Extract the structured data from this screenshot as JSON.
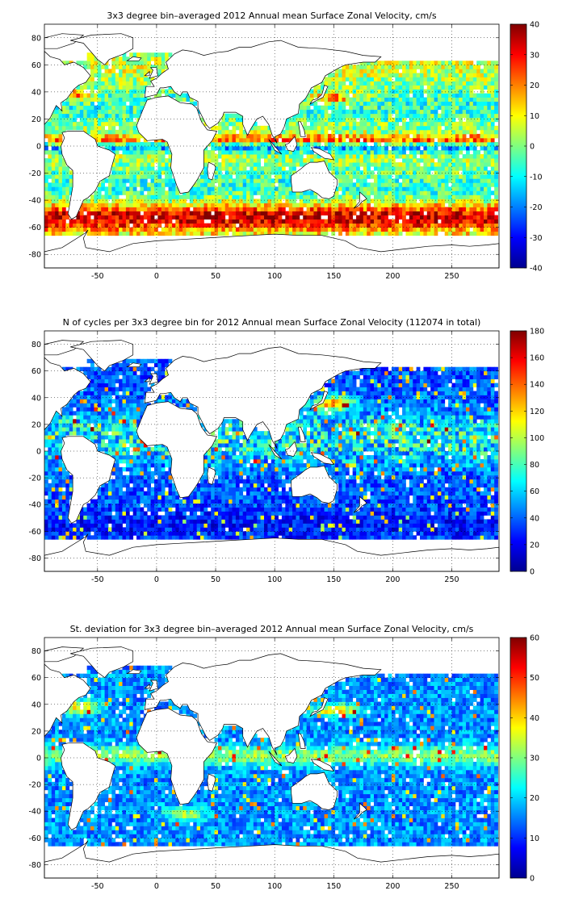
{
  "chart_data": [
    {
      "type": "heatmap",
      "title": "3x3 degree bin–averaged 2012 Annual mean Surface Zonal Velocity, cm/s",
      "xlim": [
        -95,
        290
      ],
      "ylim": [
        -90,
        90
      ],
      "xticks": [
        -50,
        0,
        50,
        100,
        150,
        200,
        250
      ],
      "yticks": [
        -80,
        -60,
        -40,
        -20,
        0,
        20,
        40,
        60,
        80
      ],
      "grid": true,
      "colormap": "jet",
      "colorbar": {
        "min": -40,
        "max": 40,
        "ticks": [
          -40,
          -30,
          -20,
          -10,
          0,
          10,
          20,
          30,
          40
        ]
      },
      "bin_size_deg": 3
    },
    {
      "type": "heatmap",
      "title": "N of cycles per 3x3 degree bin for 2012 Annual mean Surface Zonal Velocity (112074 in total)",
      "xlim": [
        -95,
        290
      ],
      "ylim": [
        -90,
        90
      ],
      "xticks": [
        -50,
        0,
        50,
        100,
        150,
        200,
        250
      ],
      "yticks": [
        -80,
        -60,
        -40,
        -20,
        0,
        20,
        40,
        60,
        80
      ],
      "grid": true,
      "colormap": "jet",
      "colorbar": {
        "min": 0,
        "max": 180,
        "ticks": [
          0,
          20,
          40,
          60,
          80,
          100,
          120,
          140,
          160,
          180
        ]
      },
      "bin_size_deg": 3
    },
    {
      "type": "heatmap",
      "title": "St. deviation for 3x3 degree bin–averaged 2012 Annual mean Surface Zonal Velocity, cm/s",
      "xlim": [
        -95,
        290
      ],
      "ylim": [
        -90,
        90
      ],
      "xticks": [
        -50,
        0,
        50,
        100,
        150,
        200,
        250
      ],
      "yticks": [
        -80,
        -60,
        -40,
        -20,
        0,
        20,
        40,
        60,
        80
      ],
      "grid": true,
      "colormap": "jet",
      "colorbar": {
        "min": 0,
        "max": 60,
        "ticks": [
          0,
          10,
          20,
          30,
          40,
          50,
          60
        ]
      },
      "bin_size_deg": 3
    }
  ]
}
